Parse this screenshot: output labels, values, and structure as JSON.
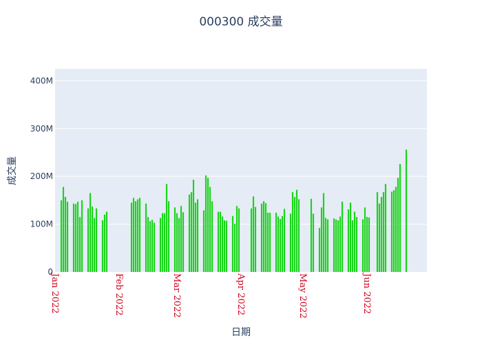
{
  "chart_data": {
    "type": "bar",
    "title": "000300 成交量",
    "xlabel": "日期",
    "ylabel": "成交量",
    "ylim": [
      0,
      425000000
    ],
    "xlim": [
      "2022-01-01",
      "2022-06-30"
    ],
    "grid": true,
    "bar_color": "#19d319",
    "plot_background": "#e5ecf6",
    "title_color": "#2a3f5f",
    "xtick_color": "#d0021b",
    "y_ticks": [
      {
        "value": 0,
        "label": "0"
      },
      {
        "value": 100000000,
        "label": "100M"
      },
      {
        "value": 200000000,
        "label": "200M"
      },
      {
        "value": 300000000,
        "label": "300M"
      },
      {
        "value": 400000000,
        "label": "400M"
      }
    ],
    "x_ticks": [
      {
        "date": "2022-01-01",
        "label": "Jan 2022"
      },
      {
        "date": "2022-02-01",
        "label": "Feb 2022"
      },
      {
        "date": "2022-03-01",
        "label": "Mar 2022"
      },
      {
        "date": "2022-04-01",
        "label": "Apr 2022"
      },
      {
        "date": "2022-05-01",
        "label": "May 2022"
      },
      {
        "date": "2022-06-01",
        "label": "Jun 2022"
      }
    ],
    "dates": [
      "2022-01-04",
      "2022-01-05",
      "2022-01-06",
      "2022-01-07",
      "2022-01-10",
      "2022-01-11",
      "2022-01-12",
      "2022-01-13",
      "2022-01-14",
      "2022-01-17",
      "2022-01-18",
      "2022-01-19",
      "2022-01-20",
      "2022-01-21",
      "2022-01-24",
      "2022-01-25",
      "2022-01-26",
      "2022-01-27",
      "2022-01-28",
      "2022-02-07",
      "2022-02-08",
      "2022-02-09",
      "2022-02-10",
      "2022-02-11",
      "2022-02-14",
      "2022-02-15",
      "2022-02-16",
      "2022-02-17",
      "2022-02-18",
      "2022-02-21",
      "2022-02-22",
      "2022-02-23",
      "2022-02-24",
      "2022-02-25",
      "2022-02-28",
      "2022-03-01",
      "2022-03-02",
      "2022-03-03",
      "2022-03-04",
      "2022-03-07",
      "2022-03-08",
      "2022-03-09",
      "2022-03-10",
      "2022-03-11",
      "2022-03-14",
      "2022-03-15",
      "2022-03-16",
      "2022-03-17",
      "2022-03-18",
      "2022-03-21",
      "2022-03-22",
      "2022-03-23",
      "2022-03-24",
      "2022-03-25",
      "2022-03-28",
      "2022-03-29",
      "2022-03-30",
      "2022-03-31",
      "2022-04-06",
      "2022-04-07",
      "2022-04-08",
      "2022-04-11",
      "2022-04-12",
      "2022-04-13",
      "2022-04-14",
      "2022-04-15",
      "2022-04-18",
      "2022-04-19",
      "2022-04-20",
      "2022-04-21",
      "2022-04-22",
      "2022-04-25",
      "2022-04-26",
      "2022-04-27",
      "2022-04-28",
      "2022-04-29",
      "2022-05-05",
      "2022-05-06",
      "2022-05-09",
      "2022-05-10",
      "2022-05-11",
      "2022-05-12",
      "2022-05-13",
      "2022-05-16",
      "2022-05-17",
      "2022-05-18",
      "2022-05-19",
      "2022-05-20",
      "2022-05-23",
      "2022-05-24",
      "2022-05-25",
      "2022-05-26",
      "2022-05-27",
      "2022-05-30",
      "2022-05-31",
      "2022-06-01",
      "2022-06-02",
      "2022-06-06",
      "2022-06-07",
      "2022-06-08",
      "2022-06-09",
      "2022-06-10",
      "2022-06-13",
      "2022-06-14",
      "2022-06-15",
      "2022-06-16",
      "2022-06-17",
      "2022-06-20"
    ],
    "values": [
      150000000,
      178000000,
      157000000,
      147000000,
      143000000,
      142000000,
      147000000,
      115000000,
      150000000,
      133000000,
      165000000,
      137000000,
      113000000,
      133000000,
      108000000,
      120000000,
      126000000,
      0,
      0,
      145000000,
      155000000,
      148000000,
      152000000,
      155000000,
      143000000,
      115000000,
      106000000,
      109000000,
      103000000,
      113000000,
      123000000,
      123000000,
      184000000,
      148000000,
      135000000,
      123000000,
      113000000,
      138000000,
      125000000,
      162000000,
      167000000,
      193000000,
      145000000,
      152000000,
      129000000,
      202000000,
      197000000,
      178000000,
      148000000,
      126000000,
      126000000,
      116000000,
      108000000,
      107000000,
      117000000,
      101000000,
      138000000,
      133000000,
      133000000,
      158000000,
      136000000,
      143000000,
      148000000,
      144000000,
      124000000,
      124000000,
      124000000,
      116000000,
      111000000,
      117000000,
      132000000,
      122000000,
      167000000,
      157000000,
      172000000,
      152000000,
      153000000,
      122000000,
      92000000,
      135000000,
      165000000,
      113000000,
      110000000,
      112000000,
      110000000,
      108000000,
      116000000,
      147000000,
      131000000,
      145000000,
      108000000,
      126000000,
      115000000,
      110000000,
      135000000,
      115000000,
      114000000,
      167000000,
      143000000,
      157000000,
      167000000,
      184000000,
      168000000,
      171000000,
      178000000,
      197000000,
      226000000,
      256000000
    ]
  }
}
